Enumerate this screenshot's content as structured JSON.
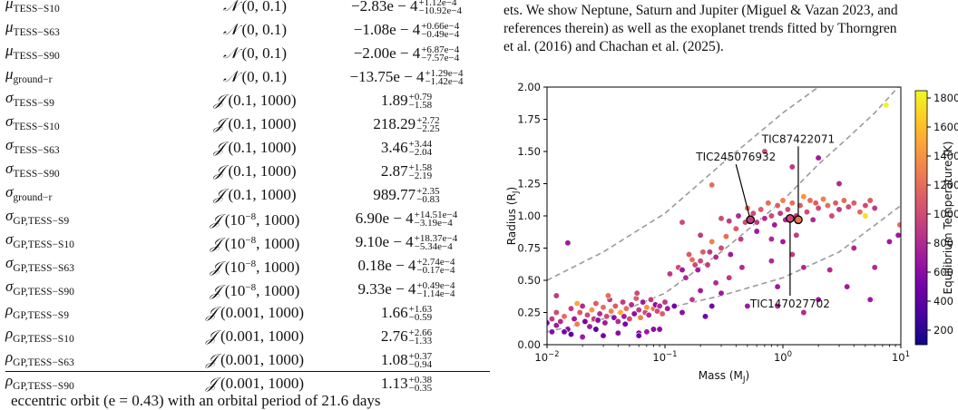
{
  "table": {
    "rows": [
      {
        "sym": "μ",
        "sub": "TESS−S10",
        "prior_dist": "𝒩",
        "prior_args": "(0, 0.1)",
        "value": "−2.83e − 4",
        "plus": "+1.12e−4",
        "minus": "−10.92e−4"
      },
      {
        "sym": "μ",
        "sub": "TESS−S63",
        "prior_dist": "𝒩",
        "prior_args": "(0, 0.1)",
        "value": "−1.08e − 4",
        "plus": "+0.66e−4",
        "minus": "−0.49e−4"
      },
      {
        "sym": "μ",
        "sub": "TESS−S90",
        "prior_dist": "𝒩",
        "prior_args": "(0, 0.1)",
        "value": "−2.00e − 4",
        "plus": "+6.87e−4",
        "minus": "−7.57e−4"
      },
      {
        "sym": "μ",
        "sub": "ground−r",
        "prior_dist": "𝒩",
        "prior_args": "(0, 0.1)",
        "value": "−13.75e − 4",
        "plus": "+1.29e−4",
        "minus": "−1.42e−4"
      },
      {
        "sym": "σ",
        "sub": "TESS−S9",
        "prior_dist": "𝒥",
        "prior_args": "(0.1, 1000)",
        "value": "1.89",
        "plus": "+0.79",
        "minus": "−1.58"
      },
      {
        "sym": "σ",
        "sub": "TESS−S10",
        "prior_dist": "𝒥",
        "prior_args": "(0.1, 1000)",
        "value": "218.29",
        "plus": "+2.72",
        "minus": "−2.25"
      },
      {
        "sym": "σ",
        "sub": "TESS−S63",
        "prior_dist": "𝒥",
        "prior_args": "(0.1, 1000)",
        "value": "3.46",
        "plus": "+3.44",
        "minus": "−2.04"
      },
      {
        "sym": "σ",
        "sub": "TESS−S90",
        "prior_dist": "𝒥",
        "prior_args": "(0.1, 1000)",
        "value": "2.87",
        "plus": "+1.58",
        "minus": "−2.19"
      },
      {
        "sym": "σ",
        "sub": "ground−r",
        "prior_dist": "𝒥",
        "prior_args": "(0.1, 1000)",
        "value": "989.77",
        "plus": "+2.35",
        "minus": "−0.83"
      },
      {
        "sym": "σ",
        "sub": "GP,TESS−S9",
        "prior_dist": "𝒥",
        "prior_args_pre": "(10",
        "prior_args_exp": "−8",
        "prior_args_post": ", 1000)",
        "value": "6.90e − 4",
        "plus": "+14.51e−4",
        "minus": "−3.19e−4"
      },
      {
        "sym": "σ",
        "sub": "GP,TESS−S10",
        "prior_dist": "𝒥",
        "prior_args_pre": "(10",
        "prior_args_exp": "−8",
        "prior_args_post": ", 1000)",
        "value": "9.10e − 4",
        "plus": "+18.37e−4",
        "minus": "−5.34e−4"
      },
      {
        "sym": "σ",
        "sub": "GP,TESS−S63",
        "prior_dist": "𝒥",
        "prior_args_pre": "(10",
        "prior_args_exp": "−8",
        "prior_args_post": ", 1000)",
        "value": "0.18e − 4",
        "plus": "+2.74e−4",
        "minus": "−0.17e−4"
      },
      {
        "sym": "σ",
        "sub": "GP,TESS−S90",
        "prior_dist": "𝒥",
        "prior_args_pre": "(10",
        "prior_args_exp": "−8",
        "prior_args_post": ", 1000)",
        "value": "9.33e − 4",
        "plus": "+0.49e−4",
        "minus": "−1.14e−4"
      },
      {
        "sym": "ρ",
        "sub": "GP,TESS−S9",
        "prior_dist": "𝒥",
        "prior_args": "(0.001, 1000)",
        "value": "1.66",
        "plus": "+1.63",
        "minus": "−0.59"
      },
      {
        "sym": "ρ",
        "sub": "GP,TESS−S10",
        "prior_dist": "𝒥",
        "prior_args": "(0.001, 1000)",
        "value": "2.76",
        "plus": "+2.66",
        "minus": "−1.33"
      },
      {
        "sym": "ρ",
        "sub": "GP,TESS−S63",
        "prior_dist": "𝒥",
        "prior_args": "(0.001, 1000)",
        "value": "1.08",
        "plus": "+0.37",
        "minus": "−0.94"
      },
      {
        "sym": "ρ",
        "sub": "GP,TESS−S90",
        "prior_dist": "𝒥",
        "prior_args": "(0.001, 1000)",
        "value": "1.13",
        "plus": "+0.38",
        "minus": "−0.35"
      }
    ]
  },
  "caption": {
    "line1": "ets. We show Neptune, Saturn and Jupiter (Miguel & Vazan 2023, and",
    "line2": "references therein) as well as the exoplanet trends fitted by Thorngren",
    "line3": "et al. (2016) and Chachan et al. (2025)."
  },
  "body_text": "eccentric orbit (e = 0.43) with an orbital period of 21.6 days",
  "chart_data": {
    "type": "scatter",
    "xlabel": "Mass (M",
    "xlabel_sub": "J",
    "ylabel": "Radius (R",
    "ylabel_sub": "J",
    "xscale": "log",
    "xlim": [
      0.01,
      10
    ],
    "ylim": [
      0.0,
      2.0
    ],
    "xticks": [
      {
        "value": 0.01,
        "base": "10",
        "exp": "−2"
      },
      {
        "value": 0.1,
        "base": "10",
        "exp": "−1"
      },
      {
        "value": 1,
        "base": "10",
        "exp": "0"
      },
      {
        "value": 10,
        "base": "10",
        "exp": "1"
      }
    ],
    "yticks": [
      {
        "value": 0.0,
        "label": "0.00"
      },
      {
        "value": 0.25,
        "label": "0.25"
      },
      {
        "value": 0.5,
        "label": "0.50"
      },
      {
        "value": 0.75,
        "label": "0.75"
      },
      {
        "value": 1.0,
        "label": "1.00"
      },
      {
        "value": 1.25,
        "label": "1.25"
      },
      {
        "value": 1.5,
        "label": "1.50"
      },
      {
        "value": 1.75,
        "label": "1.75"
      },
      {
        "value": 2.0,
        "label": "2.00"
      }
    ],
    "colorbar": {
      "label": "Equilibrium Temperature (K)",
      "min": 100,
      "max": 1850,
      "ticks": [
        200,
        400,
        600,
        800,
        1000,
        1200,
        1400,
        1600,
        1800
      ],
      "colormap": "plasma",
      "stops": [
        "#0d0887",
        "#46039f",
        "#7201a8",
        "#9c179e",
        "#bd3786",
        "#d8576b",
        "#ed7953",
        "#fb9f3a",
        "#fdca26",
        "#f0f921"
      ]
    },
    "trends": [
      {
        "points": [
          [
            0.01,
            0.5
          ],
          [
            0.03,
            0.72
          ],
          [
            0.1,
            1.02
          ],
          [
            0.3,
            1.4
          ],
          [
            1,
            1.8
          ],
          [
            2,
            2.0
          ]
        ]
      },
      {
        "points": [
          [
            0.01,
            0.1
          ],
          [
            0.03,
            0.2
          ],
          [
            0.1,
            0.4
          ],
          [
            0.3,
            0.72
          ],
          [
            1,
            1.12
          ],
          [
            2,
            1.4
          ],
          [
            3.5,
            1.6
          ],
          [
            6,
            1.8
          ],
          [
            9.5,
            2.0
          ]
        ]
      },
      {
        "points": [
          [
            0.1,
            0.28
          ],
          [
            0.3,
            0.38
          ],
          [
            1,
            0.52
          ],
          [
            3,
            0.72
          ],
          [
            10,
            1.08
          ]
        ]
      }
    ],
    "highlighted": [
      {
        "name": "TIC245076932",
        "mass": 0.53,
        "radius": 0.97,
        "temp": 900,
        "label_mass": 0.4,
        "label_radius": 1.4
      },
      {
        "name": "TIC87422071",
        "mass": 1.35,
        "radius": 0.97,
        "temp": 1250,
        "label_mass": 1.35,
        "label_radius": 1.54
      },
      {
        "name": "TIC147027702",
        "mass": 1.15,
        "radius": 0.98,
        "temp": 1000,
        "label_mass": 1.15,
        "label_radius": 0.38
      }
    ],
    "points": [
      [
        0.01,
        0.17,
        600
      ],
      [
        0.011,
        0.2,
        900
      ],
      [
        0.012,
        0.15,
        700
      ],
      [
        0.012,
        0.25,
        1000
      ],
      [
        0.013,
        0.18,
        800
      ],
      [
        0.014,
        0.22,
        1200
      ],
      [
        0.015,
        0.12,
        600
      ],
      [
        0.016,
        0.28,
        900
      ],
      [
        0.017,
        0.2,
        700
      ],
      [
        0.018,
        0.16,
        1300
      ],
      [
        0.019,
        0.25,
        1100
      ],
      [
        0.02,
        0.3,
        800
      ],
      [
        0.021,
        0.18,
        500
      ],
      [
        0.022,
        0.23,
        1000
      ],
      [
        0.023,
        0.14,
        700
      ],
      [
        0.024,
        0.27,
        1400
      ],
      [
        0.025,
        0.2,
        900
      ],
      [
        0.026,
        0.32,
        1100
      ],
      [
        0.027,
        0.19,
        600
      ],
      [
        0.028,
        0.24,
        800
      ],
      [
        0.03,
        0.29,
        1200
      ],
      [
        0.031,
        0.17,
        700
      ],
      [
        0.032,
        0.22,
        1000
      ],
      [
        0.034,
        0.35,
        900
      ],
      [
        0.035,
        0.26,
        1300
      ],
      [
        0.037,
        0.21,
        600
      ],
      [
        0.038,
        0.3,
        1100
      ],
      [
        0.04,
        0.18,
        800
      ],
      [
        0.042,
        0.25,
        1500
      ],
      [
        0.044,
        0.33,
        900
      ],
      [
        0.045,
        0.22,
        700
      ],
      [
        0.047,
        0.28,
        1200
      ],
      [
        0.05,
        0.2,
        1000
      ],
      [
        0.052,
        0.31,
        800
      ],
      [
        0.055,
        0.24,
        600
      ],
      [
        0.057,
        0.36,
        1100
      ],
      [
        0.06,
        0.27,
        900
      ],
      [
        0.062,
        0.21,
        1300
      ],
      [
        0.065,
        0.33,
        700
      ],
      [
        0.068,
        0.25,
        1000
      ],
      [
        0.07,
        0.29,
        1400
      ],
      [
        0.073,
        0.23,
        800
      ],
      [
        0.076,
        0.35,
        900
      ],
      [
        0.08,
        0.28,
        1200
      ],
      [
        0.083,
        0.31,
        600
      ],
      [
        0.086,
        0.26,
        1000
      ],
      [
        0.09,
        0.3,
        800
      ],
      [
        0.095,
        0.24,
        1100
      ],
      [
        0.1,
        0.33,
        900
      ],
      [
        0.105,
        0.28,
        700
      ],
      [
        0.014,
        0.1,
        500
      ],
      [
        0.018,
        0.32,
        1500
      ],
      [
        0.026,
        0.12,
        400
      ],
      [
        0.033,
        0.38,
        1200
      ],
      [
        0.046,
        0.16,
        500
      ],
      [
        0.058,
        0.4,
        1000
      ],
      [
        0.015,
        0.79,
        700
      ],
      [
        0.012,
        0.38,
        900
      ],
      [
        0.011,
        0.1,
        600
      ],
      [
        0.016,
        0.08,
        400
      ],
      [
        0.02,
        0.06,
        700
      ],
      [
        0.03,
        0.07,
        500
      ],
      [
        0.04,
        0.09,
        600
      ],
      [
        0.06,
        0.09,
        500
      ],
      [
        0.08,
        0.12,
        600
      ],
      [
        0.11,
        0.55,
        900
      ],
      [
        0.13,
        0.6,
        1000
      ],
      [
        0.15,
        0.52,
        800
      ],
      [
        0.17,
        0.66,
        1200
      ],
      [
        0.19,
        0.58,
        700
      ],
      [
        0.21,
        0.72,
        1100
      ],
      [
        0.23,
        0.62,
        900
      ],
      [
        0.25,
        0.8,
        1300
      ],
      [
        0.27,
        0.68,
        800
      ],
      [
        0.3,
        0.75,
        1000
      ],
      [
        0.33,
        0.84,
        1200
      ],
      [
        0.36,
        0.7,
        700
      ],
      [
        0.4,
        0.9,
        1100
      ],
      [
        0.44,
        0.82,
        900
      ],
      [
        0.48,
        0.95,
        1000
      ],
      [
        0.16,
        0.7,
        1100
      ],
      [
        0.2,
        0.65,
        1000
      ],
      [
        0.24,
        0.72,
        900
      ],
      [
        0.18,
        0.62,
        1000
      ],
      [
        0.14,
        0.58,
        700
      ],
      [
        0.12,
        0.3,
        500
      ],
      [
        0.14,
        0.25,
        600
      ],
      [
        0.17,
        0.35,
        900
      ],
      [
        0.2,
        0.42,
        700
      ],
      [
        0.25,
        0.3,
        500
      ],
      [
        0.3,
        0.4,
        700
      ],
      [
        0.22,
        0.22,
        500
      ],
      [
        0.35,
        0.52,
        900
      ],
      [
        0.45,
        0.6,
        800
      ],
      [
        0.27,
        0.48,
        800
      ],
      [
        0.25,
        1.24,
        1200
      ],
      [
        0.14,
        0.95,
        1000
      ],
      [
        0.56,
        1.02,
        1000
      ],
      [
        0.6,
        0.95,
        900
      ],
      [
        0.65,
        1.05,
        1100
      ],
      [
        0.7,
        0.98,
        800
      ],
      [
        0.75,
        1.1,
        1200
      ],
      [
        0.8,
        1.0,
        1000
      ],
      [
        0.85,
        0.93,
        700
      ],
      [
        0.9,
        1.08,
        1100
      ],
      [
        0.95,
        1.02,
        900
      ],
      [
        1.0,
        1.12,
        1300
      ],
      [
        1.05,
        0.97,
        800
      ],
      [
        1.1,
        1.05,
        1000
      ],
      [
        1.2,
        1.1,
        1200
      ],
      [
        1.3,
        1.0,
        900
      ],
      [
        1.4,
        1.08,
        1100
      ],
      [
        1.5,
        1.15,
        1400
      ],
      [
        1.6,
        1.03,
        1000
      ],
      [
        1.7,
        1.12,
        1200
      ],
      [
        1.8,
        0.97,
        800
      ],
      [
        1.9,
        1.1,
        1100
      ],
      [
        2.0,
        1.06,
        1000
      ],
      [
        2.2,
        1.13,
        1300
      ],
      [
        2.4,
        1.08,
        1200
      ],
      [
        2.6,
        1.0,
        1000
      ],
      [
        2.8,
        1.1,
        1100
      ],
      [
        3.0,
        1.05,
        900
      ],
      [
        3.3,
        1.12,
        1200
      ],
      [
        3.6,
        1.07,
        1000
      ],
      [
        4.0,
        1.1,
        1100
      ],
      [
        4.5,
        1.03,
        1200
      ],
      [
        5.0,
        1.08,
        1000
      ],
      [
        5.5,
        1.12,
        1100
      ],
      [
        6.0,
        1.06,
        900
      ],
      [
        5.0,
        1.0,
        1750
      ],
      [
        7.5,
        1.86,
        1820
      ],
      [
        0.3,
        0.98,
        1000
      ],
      [
        0.35,
        0.96,
        900
      ],
      [
        0.42,
        1.0,
        800
      ],
      [
        0.5,
        1.06,
        1200
      ],
      [
        0.6,
        0.88,
        700
      ],
      [
        0.8,
        0.82,
        800
      ],
      [
        1.0,
        0.8,
        700
      ],
      [
        1.3,
        0.85,
        900
      ],
      [
        0.7,
        1.5,
        1000
      ],
      [
        1.2,
        1.38,
        900
      ],
      [
        2.0,
        1.45,
        700
      ],
      [
        3.0,
        1.25,
        800
      ],
      [
        0.2,
        0.85,
        900
      ],
      [
        0.8,
        0.65,
        800
      ],
      [
        1.2,
        0.7,
        900
      ],
      [
        0.9,
        0.45,
        700
      ],
      [
        1.5,
        0.6,
        800
      ],
      [
        2.5,
        0.58,
        800
      ],
      [
        3.5,
        0.45,
        700
      ],
      [
        4.0,
        0.75,
        800
      ],
      [
        6.0,
        0.6,
        800
      ],
      [
        5.5,
        0.35,
        700
      ],
      [
        9.5,
        0.85,
        700
      ],
      [
        9.8,
        0.93,
        1200
      ],
      [
        8.0,
        0.8,
        700
      ],
      [
        1.5,
        0.25,
        800
      ],
      [
        2.0,
        0.35,
        700
      ],
      [
        0.9,
        0.3,
        800
      ],
      [
        0.5,
        0.3,
        700
      ],
      [
        0.06,
        0.07,
        500
      ],
      [
        0.07,
        0.1,
        700
      ],
      [
        0.09,
        0.12,
        600
      ]
    ]
  }
}
